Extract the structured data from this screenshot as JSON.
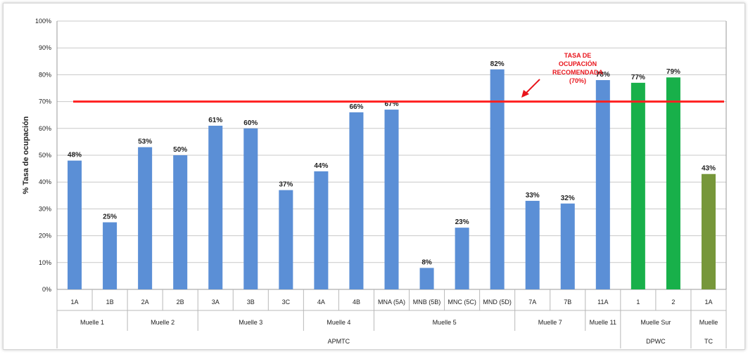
{
  "chart_data": {
    "type": "bar",
    "title": "",
    "ylabel": "% Tasa de ocupación",
    "ylim": [
      0,
      100
    ],
    "yticks": [
      "0%",
      "10%",
      "20%",
      "30%",
      "40%",
      "50%",
      "60%",
      "70%",
      "80%",
      "90%",
      "100%"
    ],
    "grid": true,
    "reference_line": {
      "value": 70,
      "color": "#ff2020",
      "annotation": [
        "TASA DE",
        "OCUPACIÓN",
        "RECOMENDADA",
        "(70%)"
      ]
    },
    "bars": [
      {
        "category": "1A",
        "value": 48,
        "label": "48%",
        "color": "#5b8fd6"
      },
      {
        "category": "1B",
        "value": 25,
        "label": "25%",
        "color": "#5b8fd6"
      },
      {
        "category": "2A",
        "value": 53,
        "label": "53%",
        "color": "#5b8fd6"
      },
      {
        "category": "2B",
        "value": 50,
        "label": "50%",
        "color": "#5b8fd6"
      },
      {
        "category": "3A",
        "value": 61,
        "label": "61%",
        "color": "#5b8fd6"
      },
      {
        "category": "3B",
        "value": 60,
        "label": "60%",
        "color": "#5b8fd6"
      },
      {
        "category": "3C",
        "value": 37,
        "label": "37%",
        "color": "#5b8fd6"
      },
      {
        "category": "4A",
        "value": 44,
        "label": "44%",
        "color": "#5b8fd6"
      },
      {
        "category": "4B",
        "value": 66,
        "label": "66%",
        "color": "#5b8fd6"
      },
      {
        "category": "MNA (5A)",
        "value": 67,
        "label": "67%",
        "color": "#5b8fd6"
      },
      {
        "category": "MNB (5B)",
        "value": 8,
        "label": "8%",
        "color": "#5b8fd6"
      },
      {
        "category": "MNC (5C)",
        "value": 23,
        "label": "23%",
        "color": "#5b8fd6"
      },
      {
        "category": "MND (5D)",
        "value": 82,
        "label": "82%",
        "color": "#5b8fd6"
      },
      {
        "category": "7A",
        "value": 33,
        "label": "33%",
        "color": "#5b8fd6"
      },
      {
        "category": "7B",
        "value": 32,
        "label": "32%",
        "color": "#5b8fd6"
      },
      {
        "category": "11A",
        "value": 78,
        "label": "78%",
        "color": "#5b8fd6"
      },
      {
        "category": "1",
        "value": 77,
        "label": "77%",
        "color": "#18b04a"
      },
      {
        "category": "2",
        "value": 79,
        "label": "79%",
        "color": "#18b04a"
      },
      {
        "category": "1A",
        "value": 43,
        "label": "43%",
        "color": "#77973a"
      }
    ],
    "groups": [
      {
        "name": "Muelle 1",
        "start": 0,
        "count": 2
      },
      {
        "name": "Muelle 2",
        "start": 2,
        "count": 2
      },
      {
        "name": "Muelle 3",
        "start": 4,
        "count": 3
      },
      {
        "name": "Muelle 4",
        "start": 7,
        "count": 2
      },
      {
        "name": "Muelle 5",
        "start": 9,
        "count": 4
      },
      {
        "name": "Muelle 7",
        "start": 13,
        "count": 2
      },
      {
        "name": "Muelle 11",
        "start": 15,
        "count": 1
      },
      {
        "name": "Muelle Sur",
        "start": 16,
        "count": 2
      },
      {
        "name": "Muelle",
        "start": 18,
        "count": 1
      }
    ],
    "supergroups": [
      {
        "name": "APMTC",
        "start": 0,
        "count": 16
      },
      {
        "name": "DPWC",
        "start": 16,
        "count": 2
      },
      {
        "name": "TC",
        "start": 18,
        "count": 1
      }
    ]
  }
}
